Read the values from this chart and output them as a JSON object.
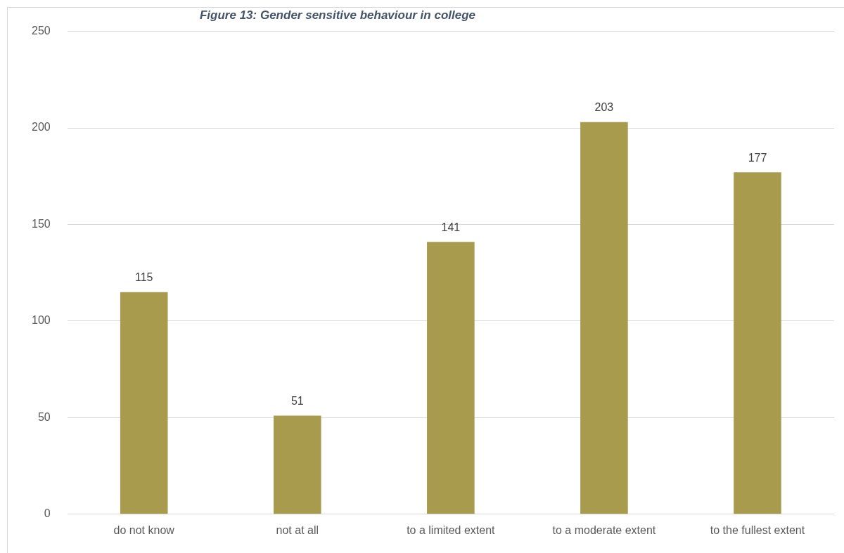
{
  "chart_data": {
    "type": "bar",
    "title": "Figure 13: Gender sensitive behaviour in college",
    "categories": [
      "do not know",
      "not at all",
      "to a limited extent",
      "to a moderate extent",
      "to the fullest extent"
    ],
    "values": [
      115,
      51,
      141,
      203,
      177
    ],
    "color": "#a99b4e",
    "ylim": [
      0,
      250
    ],
    "yticks": [
      0,
      50,
      100,
      150,
      200,
      250
    ],
    "grid": "y",
    "data_labels": true
  }
}
